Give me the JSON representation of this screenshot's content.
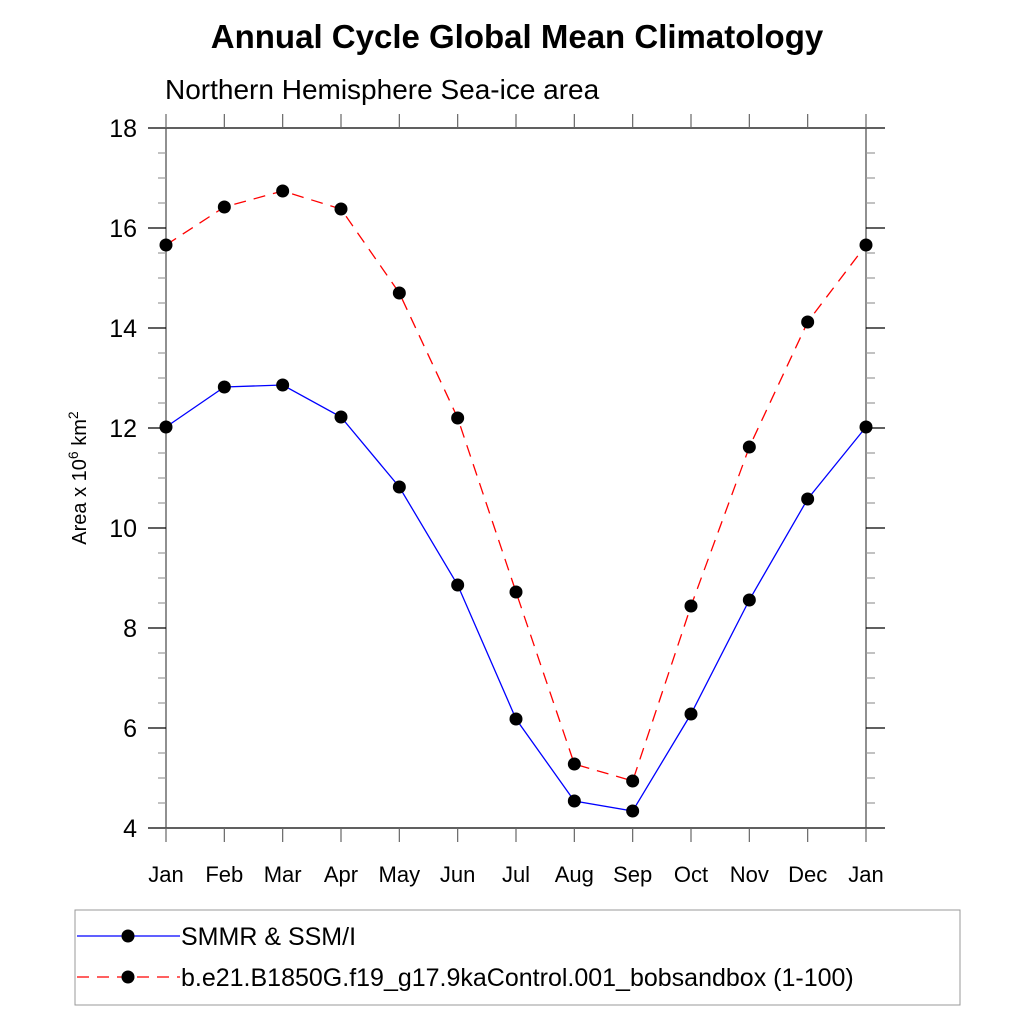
{
  "chart_data": {
    "type": "line",
    "title": "Annual Cycle Global Mean Climatology",
    "subtitle": "Northern Hemisphere Sea-ice area",
    "ylabel_prefix": "Area x 10",
    "ylabel_exp": "6",
    "ylabel_unit": " km",
    "ylabel_unit_exp": "2",
    "xlabel": "",
    "categories": [
      "Jan",
      "Feb",
      "Mar",
      "Apr",
      "May",
      "Jun",
      "Jul",
      "Aug",
      "Sep",
      "Oct",
      "Nov",
      "Dec",
      "Jan"
    ],
    "ylim": [
      4,
      18
    ],
    "yticks": [
      4,
      6,
      8,
      10,
      12,
      14,
      16,
      18
    ],
    "grid": false,
    "legend_position": "bottom",
    "series": [
      {
        "name": "SMMR & SSM/I",
        "color": "#0000ff",
        "dash": "solid",
        "values": [
          12.02,
          12.82,
          12.86,
          12.22,
          10.82,
          8.86,
          6.18,
          4.54,
          4.34,
          6.28,
          8.56,
          10.58,
          12.02
        ]
      },
      {
        "name": "b.e21.B1850G.f19_g17.9kaControl.001_bobsandbox (1-100)",
        "color": "#ff0000",
        "dash": "dashed",
        "values": [
          15.66,
          16.42,
          16.74,
          16.38,
          14.7,
          12.2,
          8.72,
          5.28,
          4.94,
          8.44,
          11.62,
          14.12,
          15.66
        ]
      }
    ]
  }
}
